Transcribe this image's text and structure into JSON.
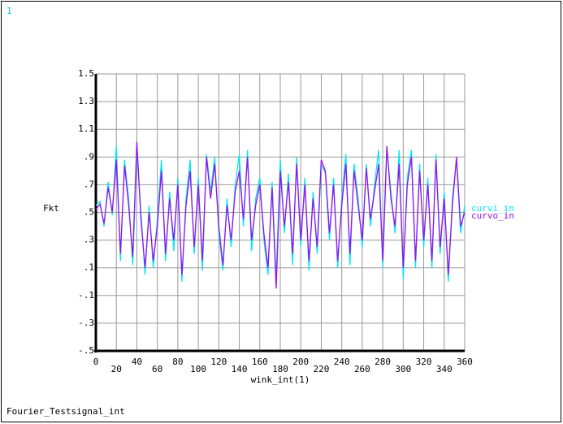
{
  "chart_data": {
    "type": "line",
    "page_number": "1",
    "footer": "Fourier_Testsignal_int",
    "ylabel": "Fkt",
    "xlabel": "wink_int(1)",
    "x": [
      0,
      4,
      8,
      12,
      16,
      20,
      24,
      28,
      32,
      36,
      40,
      44,
      48,
      52,
      56,
      60,
      64,
      68,
      72,
      76,
      80,
      84,
      88,
      92,
      96,
      100,
      104,
      108,
      112,
      116,
      120,
      124,
      128,
      132,
      136,
      140,
      144,
      148,
      152,
      156,
      160,
      164,
      168,
      172,
      176,
      180,
      184,
      188,
      192,
      196,
      200,
      204,
      208,
      212,
      216,
      220,
      224,
      228,
      232,
      236,
      240,
      244,
      248,
      252,
      256,
      260,
      264,
      268,
      272,
      276,
      280,
      284,
      288,
      292,
      296,
      300,
      304,
      308,
      312,
      316,
      320,
      324,
      328,
      332,
      336,
      340,
      344,
      348,
      352,
      356,
      360
    ],
    "series": [
      {
        "name": "curvi_in",
        "color": "#00e8f0",
        "values": [
          0.55,
          0.58,
          0.4,
          0.72,
          0.48,
          0.98,
          0.15,
          0.88,
          0.6,
          0.12,
          0.95,
          0.5,
          0.05,
          0.55,
          0.1,
          0.45,
          0.88,
          0.15,
          0.65,
          0.22,
          0.75,
          0.0,
          0.6,
          0.88,
          0.2,
          0.75,
          0.08,
          0.92,
          0.65,
          0.9,
          0.35,
          0.08,
          0.6,
          0.25,
          0.7,
          0.92,
          0.4,
          0.95,
          0.22,
          0.6,
          0.75,
          0.3,
          0.05,
          0.72,
          0.02,
          0.88,
          0.35,
          0.78,
          0.12,
          0.9,
          0.25,
          0.75,
          0.08,
          0.65,
          0.2,
          0.85,
          0.78,
          0.3,
          0.75,
          0.1,
          0.6,
          0.92,
          0.12,
          0.85,
          0.6,
          0.25,
          0.85,
          0.4,
          0.7,
          0.95,
          0.1,
          0.95,
          0.65,
          0.35,
          0.95,
          0.02,
          0.75,
          0.95,
          0.1,
          0.85,
          0.25,
          0.75,
          0.1,
          0.92,
          0.2,
          0.65,
          0.0,
          0.6,
          0.88,
          0.35,
          0.55
        ]
      },
      {
        "name": "curvo_in",
        "color": "#9a10f0",
        "values": [
          0.52,
          0.56,
          0.42,
          0.68,
          0.5,
          0.88,
          0.2,
          0.84,
          0.55,
          0.18,
          1.01,
          0.45,
          0.1,
          0.5,
          0.15,
          0.4,
          0.8,
          0.2,
          0.6,
          0.3,
          0.7,
          0.05,
          0.55,
          0.8,
          0.25,
          0.7,
          0.15,
          0.9,
          0.6,
          0.85,
          0.4,
          0.12,
          0.55,
          0.3,
          0.65,
          0.8,
          0.45,
          0.9,
          0.3,
          0.55,
          0.7,
          0.35,
          0.1,
          0.68,
          -0.05,
          0.8,
          0.4,
          0.72,
          0.2,
          0.85,
          0.3,
          0.7,
          0.15,
          0.6,
          0.25,
          0.88,
          0.8,
          0.35,
          0.7,
          0.15,
          0.55,
          0.85,
          0.2,
          0.8,
          0.55,
          0.3,
          0.82,
          0.45,
          0.65,
          0.85,
          0.15,
          0.98,
          0.6,
          0.4,
          0.85,
          0.1,
          0.7,
          0.9,
          0.15,
          0.8,
          0.3,
          0.7,
          0.15,
          0.88,
          0.25,
          0.6,
          0.05,
          0.55,
          0.9,
          0.4,
          0.5
        ]
      }
    ],
    "xlim": [
      0,
      360
    ],
    "xticks": [
      0,
      20,
      40,
      60,
      80,
      100,
      120,
      140,
      160,
      180,
      200,
      220,
      240,
      260,
      280,
      300,
      320,
      340,
      360
    ],
    "ylim": [
      -0.5,
      1.5
    ],
    "yticks": [
      {
        "value": -0.5,
        "label": "-.5"
      },
      {
        "value": -0.3,
        "label": "-.3"
      },
      {
        "value": -0.1,
        "label": "-.1"
      },
      {
        "value": 0.1,
        "label": ".1"
      },
      {
        "value": 0.3,
        "label": ".3"
      },
      {
        "value": 0.5,
        "label": ".5"
      },
      {
        "value": 0.7,
        "label": ".7"
      },
      {
        "value": 0.9,
        "label": ".9"
      },
      1.1,
      1.3,
      1.5
    ],
    "grid": true
  }
}
